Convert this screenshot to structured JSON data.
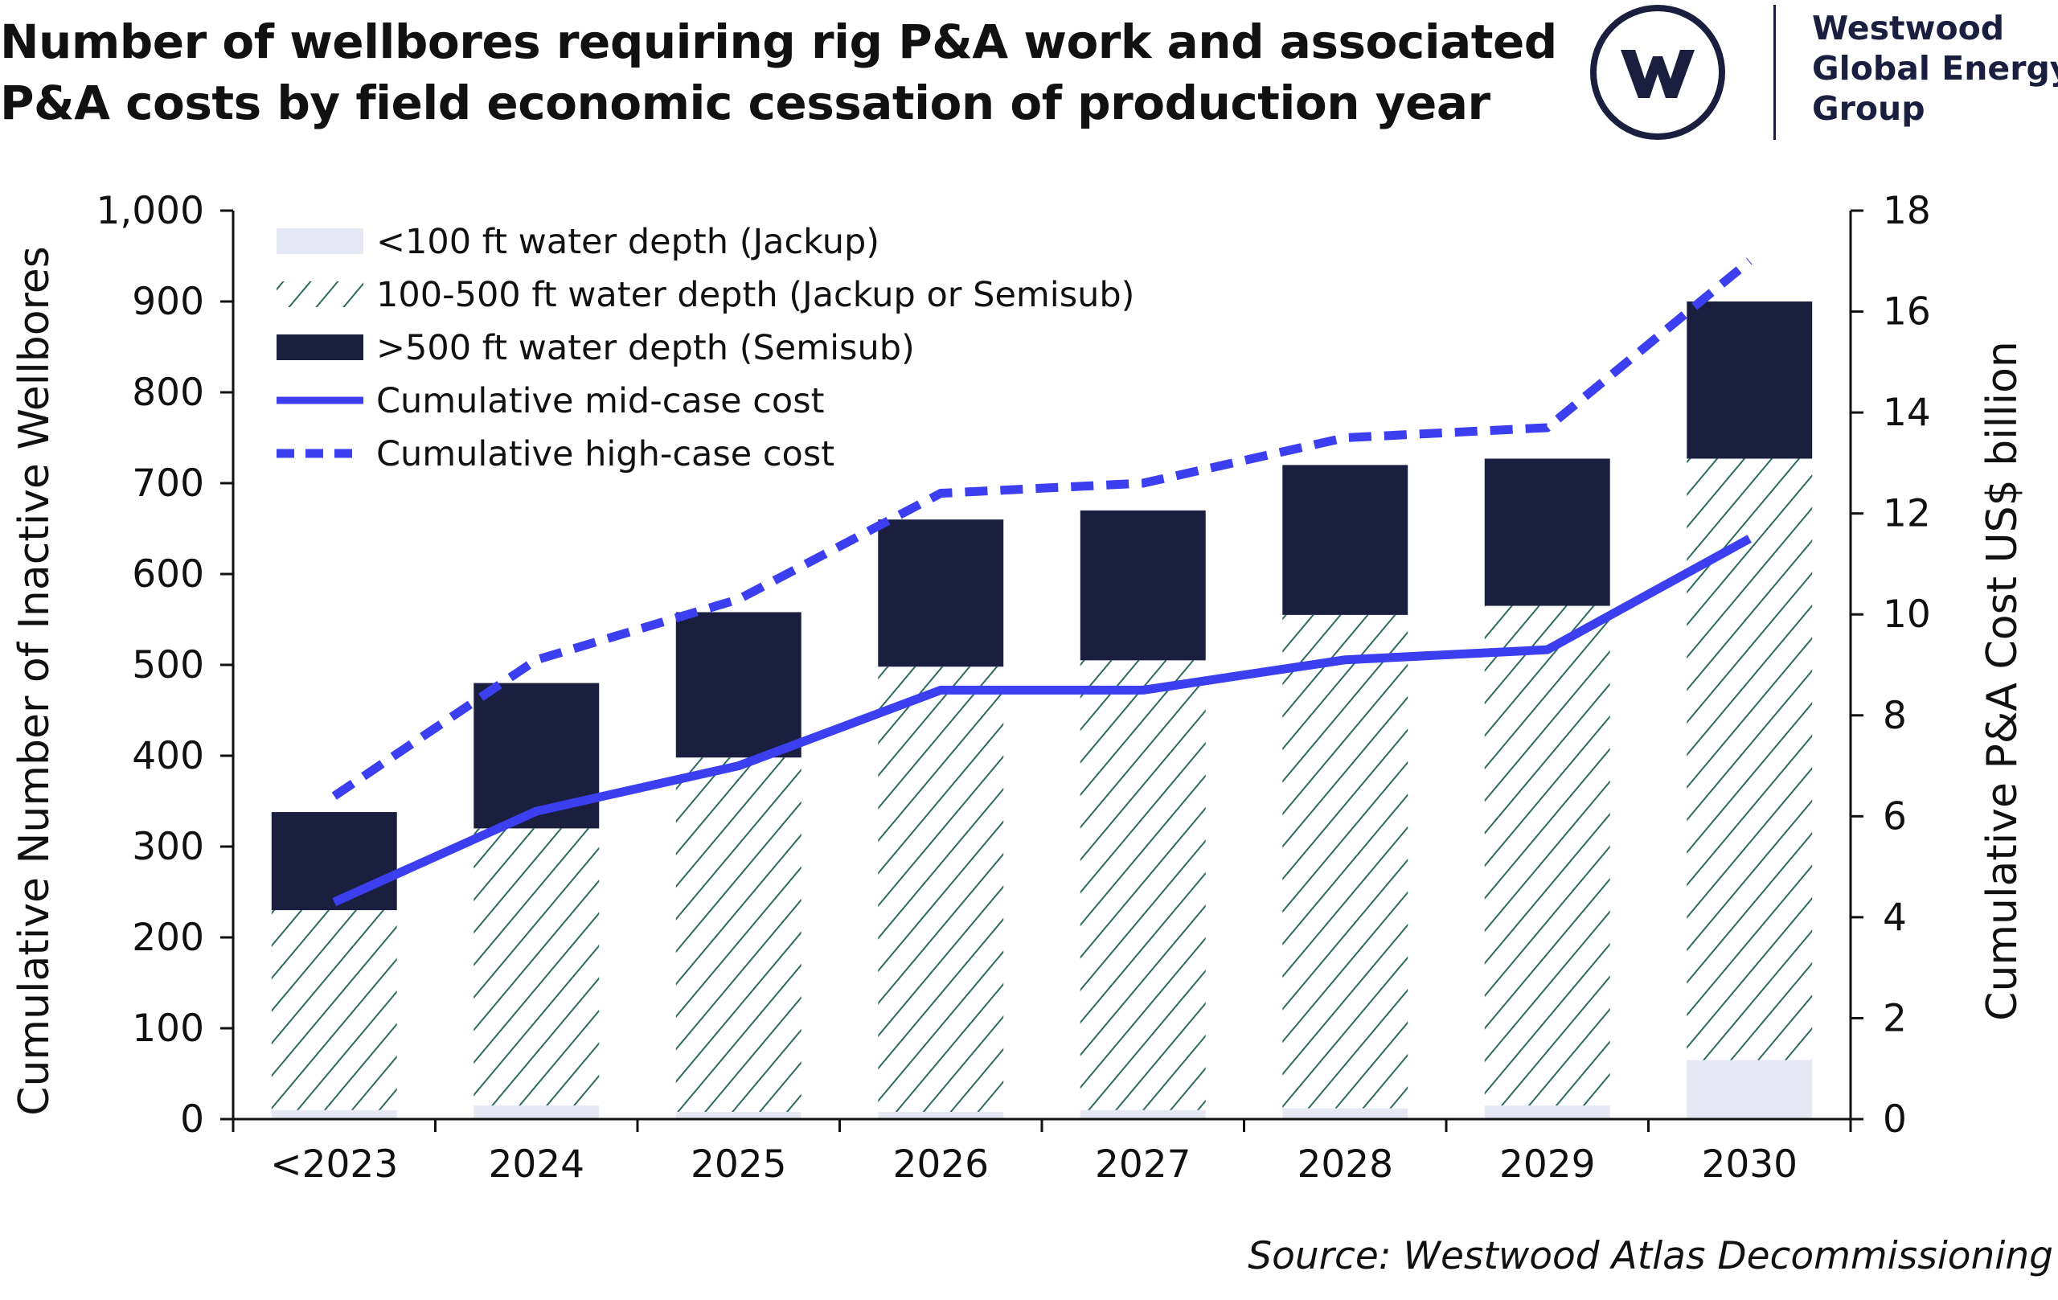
{
  "title": {
    "line1": "Number of wellbores requiring rig P&A work and associated",
    "line2": "P&A costs by field economic cessation of production year"
  },
  "logo": {
    "line1": "Westwood",
    "line2": "Global Energy",
    "line3": "Group"
  },
  "source": "Source: Westwood Atlas Decommissioning",
  "colors": {
    "jackup": "#e6e8f4",
    "hatch": "#2e6a60",
    "hatch_bg": "#ffffff",
    "semisub": "#1b1f3f",
    "mid_cost": "#3b3ff0",
    "high_cost": "#3b3ff0",
    "text": "#111111",
    "brand": "#1b1f3f"
  },
  "chart_data": {
    "type": "bar",
    "stacked": true,
    "categories": [
      "<2023",
      "2024",
      "2025",
      "2026",
      "2027",
      "2028",
      "2029",
      "2030"
    ],
    "series": [
      {
        "name": "<100 ft water depth (Jackup)",
        "kind": "bar",
        "values": [
          10,
          15,
          8,
          8,
          10,
          12,
          15,
          65
        ]
      },
      {
        "name": "100-500 ft water depth (Jackup or Semisub)",
        "kind": "bar",
        "values": [
          220,
          305,
          390,
          490,
          495,
          543,
          550,
          662
        ]
      },
      {
        "name": ">500 ft water depth (Semisub)",
        "kind": "bar",
        "values": [
          108,
          160,
          160,
          162,
          165,
          165,
          162,
          173
        ]
      },
      {
        "name": "Cumulative mid-case cost",
        "kind": "line",
        "axis": "right",
        "values": [
          4.3,
          6.1,
          7.0,
          8.5,
          8.5,
          9.1,
          9.3,
          11.5
        ]
      },
      {
        "name": "Cumulative high-case cost",
        "kind": "line",
        "axis": "right",
        "dashed": true,
        "values": [
          6.4,
          9.1,
          10.3,
          12.4,
          12.6,
          13.5,
          13.7,
          17.0
        ]
      }
    ],
    "ylabel": "Cumulative Number of Inactive Wellbores",
    "ylim": [
      0,
      1000
    ],
    "yticks": [
      "0",
      "100",
      "200",
      "300",
      "400",
      "500",
      "600",
      "700",
      "800",
      "900",
      "1,000"
    ],
    "y2label": "Cumulative P&A Cost US$ billion",
    "y2lim": [
      0,
      18
    ],
    "y2ticks": [
      "0",
      "2",
      "4",
      "6",
      "8",
      "10",
      "12",
      "14",
      "16",
      "18"
    ],
    "legend": "top-left",
    "grid": false
  }
}
